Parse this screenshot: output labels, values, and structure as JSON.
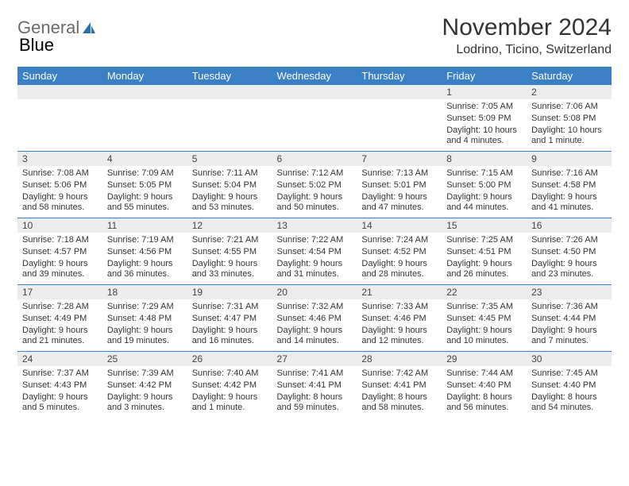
{
  "logo": {
    "general": "General",
    "blue": "Blue"
  },
  "title": "November 2024",
  "location": "Lodrino, Ticino, Switzerland",
  "colors": {
    "header_bg": "#3b7fc4",
    "header_text": "#ffffff",
    "daynum_bg": "#ececec",
    "border": "#3b7fc4",
    "text": "#333333",
    "logo_gray": "#6a6a6a",
    "logo_blue": "#2b6fb3"
  },
  "weekdays": [
    "Sunday",
    "Monday",
    "Tuesday",
    "Wednesday",
    "Thursday",
    "Friday",
    "Saturday"
  ],
  "weeks": [
    [
      null,
      null,
      null,
      null,
      null,
      {
        "n": "1",
        "sr": "Sunrise: 7:05 AM",
        "ss": "Sunset: 5:09 PM",
        "dl": "Daylight: 10 hours and 4 minutes."
      },
      {
        "n": "2",
        "sr": "Sunrise: 7:06 AM",
        "ss": "Sunset: 5:08 PM",
        "dl": "Daylight: 10 hours and 1 minute."
      }
    ],
    [
      {
        "n": "3",
        "sr": "Sunrise: 7:08 AM",
        "ss": "Sunset: 5:06 PM",
        "dl": "Daylight: 9 hours and 58 minutes."
      },
      {
        "n": "4",
        "sr": "Sunrise: 7:09 AM",
        "ss": "Sunset: 5:05 PM",
        "dl": "Daylight: 9 hours and 55 minutes."
      },
      {
        "n": "5",
        "sr": "Sunrise: 7:11 AM",
        "ss": "Sunset: 5:04 PM",
        "dl": "Daylight: 9 hours and 53 minutes."
      },
      {
        "n": "6",
        "sr": "Sunrise: 7:12 AM",
        "ss": "Sunset: 5:02 PM",
        "dl": "Daylight: 9 hours and 50 minutes."
      },
      {
        "n": "7",
        "sr": "Sunrise: 7:13 AM",
        "ss": "Sunset: 5:01 PM",
        "dl": "Daylight: 9 hours and 47 minutes."
      },
      {
        "n": "8",
        "sr": "Sunrise: 7:15 AM",
        "ss": "Sunset: 5:00 PM",
        "dl": "Daylight: 9 hours and 44 minutes."
      },
      {
        "n": "9",
        "sr": "Sunrise: 7:16 AM",
        "ss": "Sunset: 4:58 PM",
        "dl": "Daylight: 9 hours and 41 minutes."
      }
    ],
    [
      {
        "n": "10",
        "sr": "Sunrise: 7:18 AM",
        "ss": "Sunset: 4:57 PM",
        "dl": "Daylight: 9 hours and 39 minutes."
      },
      {
        "n": "11",
        "sr": "Sunrise: 7:19 AM",
        "ss": "Sunset: 4:56 PM",
        "dl": "Daylight: 9 hours and 36 minutes."
      },
      {
        "n": "12",
        "sr": "Sunrise: 7:21 AM",
        "ss": "Sunset: 4:55 PM",
        "dl": "Daylight: 9 hours and 33 minutes."
      },
      {
        "n": "13",
        "sr": "Sunrise: 7:22 AM",
        "ss": "Sunset: 4:54 PM",
        "dl": "Daylight: 9 hours and 31 minutes."
      },
      {
        "n": "14",
        "sr": "Sunrise: 7:24 AM",
        "ss": "Sunset: 4:52 PM",
        "dl": "Daylight: 9 hours and 28 minutes."
      },
      {
        "n": "15",
        "sr": "Sunrise: 7:25 AM",
        "ss": "Sunset: 4:51 PM",
        "dl": "Daylight: 9 hours and 26 minutes."
      },
      {
        "n": "16",
        "sr": "Sunrise: 7:26 AM",
        "ss": "Sunset: 4:50 PM",
        "dl": "Daylight: 9 hours and 23 minutes."
      }
    ],
    [
      {
        "n": "17",
        "sr": "Sunrise: 7:28 AM",
        "ss": "Sunset: 4:49 PM",
        "dl": "Daylight: 9 hours and 21 minutes."
      },
      {
        "n": "18",
        "sr": "Sunrise: 7:29 AM",
        "ss": "Sunset: 4:48 PM",
        "dl": "Daylight: 9 hours and 19 minutes."
      },
      {
        "n": "19",
        "sr": "Sunrise: 7:31 AM",
        "ss": "Sunset: 4:47 PM",
        "dl": "Daylight: 9 hours and 16 minutes."
      },
      {
        "n": "20",
        "sr": "Sunrise: 7:32 AM",
        "ss": "Sunset: 4:46 PM",
        "dl": "Daylight: 9 hours and 14 minutes."
      },
      {
        "n": "21",
        "sr": "Sunrise: 7:33 AM",
        "ss": "Sunset: 4:46 PM",
        "dl": "Daylight: 9 hours and 12 minutes."
      },
      {
        "n": "22",
        "sr": "Sunrise: 7:35 AM",
        "ss": "Sunset: 4:45 PM",
        "dl": "Daylight: 9 hours and 10 minutes."
      },
      {
        "n": "23",
        "sr": "Sunrise: 7:36 AM",
        "ss": "Sunset: 4:44 PM",
        "dl": "Daylight: 9 hours and 7 minutes."
      }
    ],
    [
      {
        "n": "24",
        "sr": "Sunrise: 7:37 AM",
        "ss": "Sunset: 4:43 PM",
        "dl": "Daylight: 9 hours and 5 minutes."
      },
      {
        "n": "25",
        "sr": "Sunrise: 7:39 AM",
        "ss": "Sunset: 4:42 PM",
        "dl": "Daylight: 9 hours and 3 minutes."
      },
      {
        "n": "26",
        "sr": "Sunrise: 7:40 AM",
        "ss": "Sunset: 4:42 PM",
        "dl": "Daylight: 9 hours and 1 minute."
      },
      {
        "n": "27",
        "sr": "Sunrise: 7:41 AM",
        "ss": "Sunset: 4:41 PM",
        "dl": "Daylight: 8 hours and 59 minutes."
      },
      {
        "n": "28",
        "sr": "Sunrise: 7:42 AM",
        "ss": "Sunset: 4:41 PM",
        "dl": "Daylight: 8 hours and 58 minutes."
      },
      {
        "n": "29",
        "sr": "Sunrise: 7:44 AM",
        "ss": "Sunset: 4:40 PM",
        "dl": "Daylight: 8 hours and 56 minutes."
      },
      {
        "n": "30",
        "sr": "Sunrise: 7:45 AM",
        "ss": "Sunset: 4:40 PM",
        "dl": "Daylight: 8 hours and 54 minutes."
      }
    ]
  ]
}
